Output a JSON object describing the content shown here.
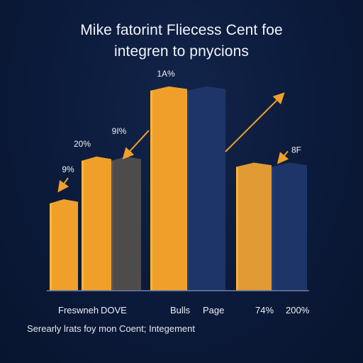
{
  "chart_data": {
    "type": "bar",
    "title": [
      "Mike fatorint Fliecess Cent foe",
      "integren to pnycions"
    ],
    "footer": "Serearly lrats foy mon Coent; Integement",
    "category_labels": [
      "Freswneh",
      "DOVE",
      "Bulls",
      "Page",
      "74%",
      "200%"
    ],
    "bars": [
      {
        "name": "bar-1",
        "value": 30,
        "color": "#f0a02a",
        "label": "9%"
      },
      {
        "name": "bar-2",
        "value": 44,
        "color": "#f0a02a",
        "label": "20%"
      },
      {
        "name": "bar-3",
        "value": 44,
        "color": "#4e4b4b",
        "label": "9I%"
      },
      {
        "name": "bar-4",
        "value": 67,
        "color": "#f0a02a",
        "label": "1A%"
      },
      {
        "name": "bar-5",
        "value": 67,
        "color": "#1d3568",
        "label": ""
      },
      {
        "name": "bar-6",
        "value": 42,
        "color": "#e19a34",
        "label": "8F"
      },
      {
        "name": "bar-7",
        "value": 42,
        "color": "#1d3568",
        "label": ""
      }
    ],
    "ylim": [
      0,
      100
    ],
    "accent_color": "#f0a02a"
  }
}
